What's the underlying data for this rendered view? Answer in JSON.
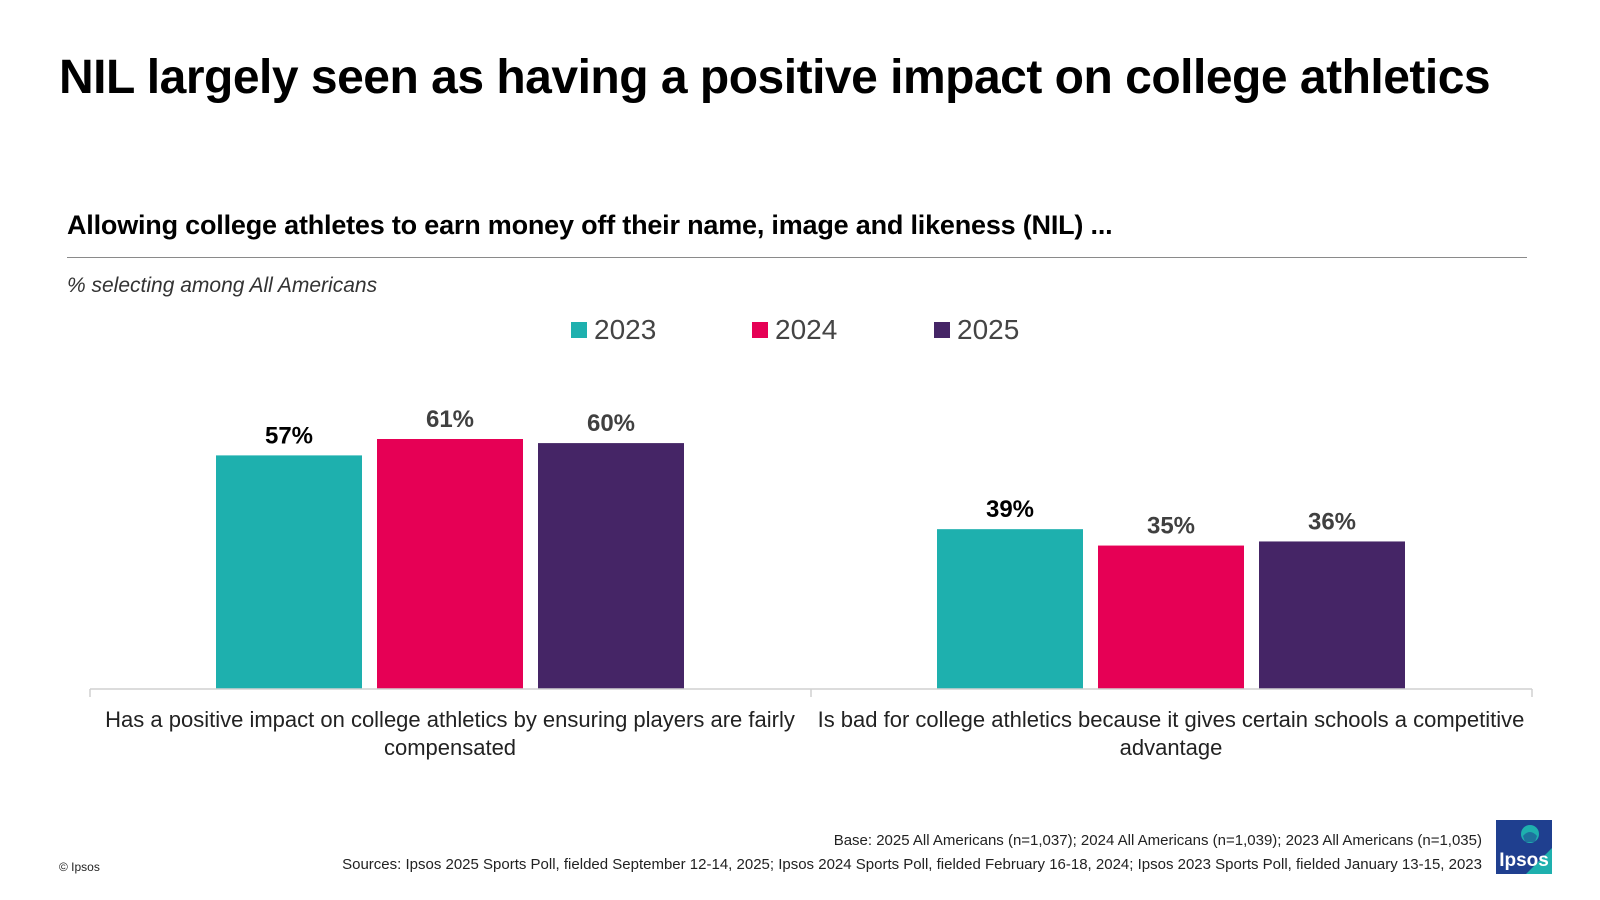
{
  "title": "NIL largely seen as having a positive impact on college athletics",
  "subtitle": "Allowing college athletes to earn money off their name, image and likeness (NIL) ...",
  "note": "% selecting among All Americans",
  "legend": [
    {
      "label": "2023",
      "color": "#1eb0ae"
    },
    {
      "label": "2024",
      "color": "#e60055"
    },
    {
      "label": "2025",
      "color": "#452566"
    }
  ],
  "chart_data": {
    "type": "bar",
    "title": "Allowing college athletes to earn money off their name, image and likeness (NIL) ...",
    "ylabel": "% selecting among All Americans",
    "categories": [
      "Has a positive impact on college athletics by ensuring players are fairly compensated",
      "Is bad for college athletics because it gives certain schools a competitive advantage"
    ],
    "series": [
      {
        "name": "2023",
        "values": [
          57,
          39
        ],
        "labels": [
          "57%",
          "39%"
        ],
        "color": "#1eb0ae",
        "label_color": "#000000"
      },
      {
        "name": "2024",
        "values": [
          61,
          35
        ],
        "labels": [
          "61%",
          "35%"
        ],
        "color": "#e60055",
        "label_color": "#404040"
      },
      {
        "name": "2025",
        "values": [
          60,
          36
        ],
        "labels": [
          "60%",
          "36%"
        ],
        "color": "#452566",
        "label_color": "#404040"
      }
    ],
    "ylim": [
      0,
      61
    ],
    "grid": false,
    "legend_position": "top-center"
  },
  "footer": {
    "base": "Base: 2025 All Americans (n=1,037); 2024 All Americans (n=1,039); 2023 All Americans (n=1,035)",
    "sources": "Sources: Ipsos 2025 Sports Poll, fielded September 12-14, 2025; Ipsos 2024 Sports Poll, fielded February 16-18, 2024; Ipsos 2023 Sports Poll, fielded January 13-15, 2023",
    "copyright": "© Ipsos",
    "logo_text": "Ipsos"
  }
}
